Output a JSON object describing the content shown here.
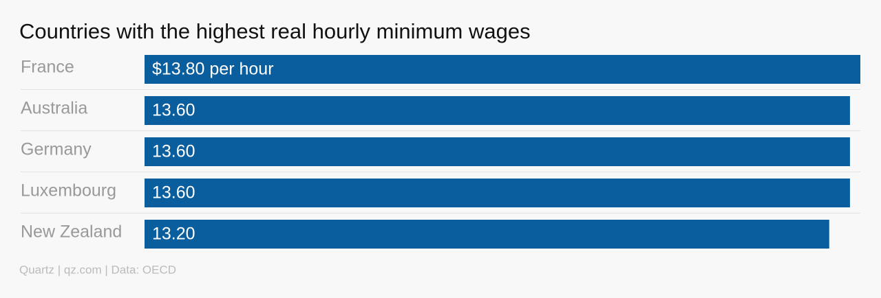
{
  "chart_data": {
    "type": "hbar",
    "title": "Countries with the highest real hourly minimum wages",
    "categories": [
      "France",
      "Australia",
      "Germany",
      "Luxembourg",
      "New Zealand"
    ],
    "values": [
      13.8,
      13.6,
      13.6,
      13.6,
      13.2
    ],
    "value_labels": [
      "$13.80 per hour",
      "13.60",
      "13.60",
      "13.60",
      "13.20"
    ],
    "color": "#0b5e9d",
    "source": "Quartz | qz.com | Data: OECD"
  }
}
